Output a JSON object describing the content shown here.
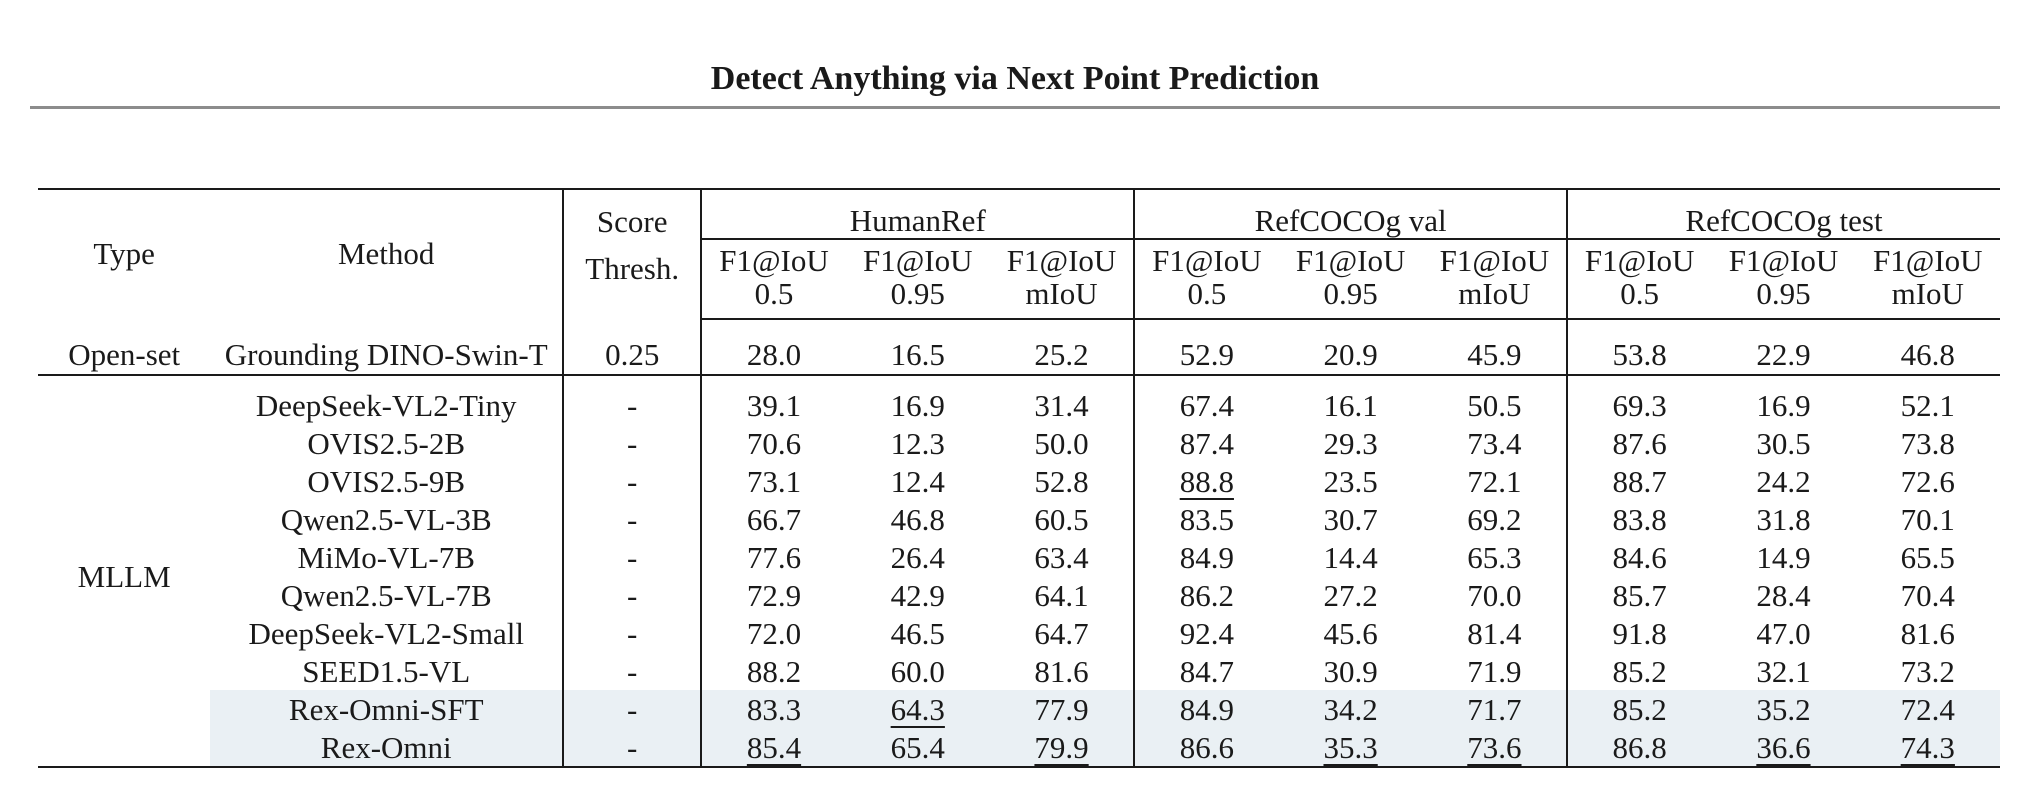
{
  "page_header": {
    "title": "Detect Anything via Next Point Prediction"
  },
  "table": {
    "header": {
      "type": "Type",
      "method": "Method",
      "score_line1": "Score",
      "score_line2": "Thresh.",
      "groups": [
        "HumanRef",
        "RefCOCOg val",
        "RefCOCOg test"
      ],
      "metric_top": "F1@IoU",
      "metric_sub": [
        "0.5",
        "0.95",
        "mIoU"
      ]
    },
    "open_set": {
      "type": "Open-set",
      "method": "Grounding DINO-Swin-T",
      "thresh": "0.25",
      "values": [
        "28.0",
        "16.5",
        "25.2",
        "52.9",
        "20.9",
        "45.9",
        "53.8",
        "22.9",
        "46.8"
      ]
    },
    "mllm": {
      "type": "MLLM",
      "rows": [
        {
          "method": "DeepSeek-VL2-Tiny",
          "thresh": "-",
          "values": [
            "39.1",
            "16.9",
            "31.4",
            "67.4",
            "16.1",
            "50.5",
            "69.3",
            "16.9",
            "52.1"
          ]
        },
        {
          "method": "OVIS2.5-2B",
          "thresh": "-",
          "values": [
            "70.6",
            "12.3",
            "50.0",
            "87.4",
            "29.3",
            "73.4",
            "87.6",
            "30.5",
            "73.8"
          ]
        },
        {
          "method": "OVIS2.5-9B",
          "thresh": "-",
          "values": [
            "73.1",
            "12.4",
            "52.8",
            "88.8",
            "23.5",
            "72.1",
            "88.7",
            "24.2",
            "72.6"
          ]
        },
        {
          "method": "Qwen2.5-VL-3B",
          "thresh": "-",
          "values": [
            "66.7",
            "46.8",
            "60.5",
            "83.5",
            "30.7",
            "69.2",
            "83.8",
            "31.8",
            "70.1"
          ]
        },
        {
          "method": "MiMo-VL-7B",
          "thresh": "-",
          "values": [
            "77.6",
            "26.4",
            "63.4",
            "84.9",
            "14.4",
            "65.3",
            "84.6",
            "14.9",
            "65.5"
          ]
        },
        {
          "method": "Qwen2.5-VL-7B",
          "thresh": "-",
          "values": [
            "72.9",
            "42.9",
            "64.1",
            "86.2",
            "27.2",
            "70.0",
            "85.7",
            "28.4",
            "70.4"
          ]
        },
        {
          "method": "DeepSeek-VL2-Small",
          "thresh": "-",
          "values": [
            "72.0",
            "46.5",
            "64.7",
            "92.4",
            "45.6",
            "81.4",
            "91.8",
            "47.0",
            "81.6"
          ]
        },
        {
          "method": "SEED1.5-VL",
          "thresh": "-",
          "values": [
            "88.2",
            "60.0",
            "81.6",
            "84.7",
            "30.9",
            "71.9",
            "85.2",
            "32.1",
            "73.2"
          ]
        },
        {
          "method": "Rex-Omni-SFT",
          "thresh": "-",
          "values": [
            "83.3",
            "64.3",
            "77.9",
            "84.9",
            "34.2",
            "71.7",
            "85.2",
            "35.2",
            "72.4"
          ]
        },
        {
          "method": "Rex-Omni",
          "thresh": "-",
          "values": [
            "85.4",
            "65.4",
            "79.9",
            "86.6",
            "35.3",
            "73.6",
            "86.8",
            "36.6",
            "74.3"
          ]
        }
      ]
    }
  }
}
